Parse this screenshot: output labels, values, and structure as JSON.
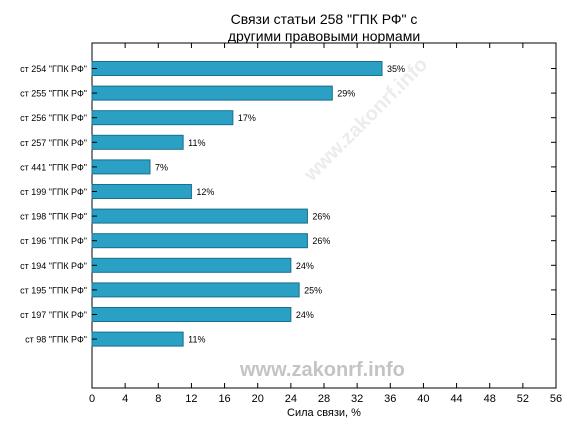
{
  "chart_data": {
    "type": "bar",
    "orientation": "horizontal",
    "title_lines": [
      "Связи статьи 258 \"ГПК РФ\" с",
      "другими правовыми нормами"
    ],
    "xlabel": "Сила связи, %",
    "ylabel": "",
    "xlim": [
      0,
      56
    ],
    "xticks": [
      0,
      4,
      8,
      12,
      16,
      20,
      24,
      28,
      32,
      36,
      40,
      44,
      48,
      52,
      56
    ],
    "categories": [
      "ст 254 \"ГПК РФ\"",
      "ст 255 \"ГПК РФ\"",
      "ст 256 \"ГПК РФ\"",
      "ст 257 \"ГПК РФ\"",
      "ст 441 \"ГПК РФ\"",
      "ст 199 \"ГПК РФ\"",
      "ст 198 \"ГПК РФ\"",
      "ст 196 \"ГПК РФ\"",
      "ст 194 \"ГПК РФ\"",
      "ст 195 \"ГПК РФ\"",
      "ст 197 \"ГПК РФ\"",
      "ст 98 \"ГПК РФ\""
    ],
    "values": [
      35,
      29,
      17,
      11,
      7,
      12,
      26,
      26,
      24,
      25,
      24,
      11
    ],
    "value_labels": [
      "35%",
      "29%",
      "17%",
      "11%",
      "7%",
      "12%",
      "26%",
      "26%",
      "24%",
      "25%",
      "24%",
      "11%"
    ],
    "bar_color": "#2aa0c5",
    "bar_edge_color": "#1a6f8c",
    "grid": false,
    "legend": "none"
  },
  "watermark": {
    "text": "www.zakonrf.info"
  }
}
